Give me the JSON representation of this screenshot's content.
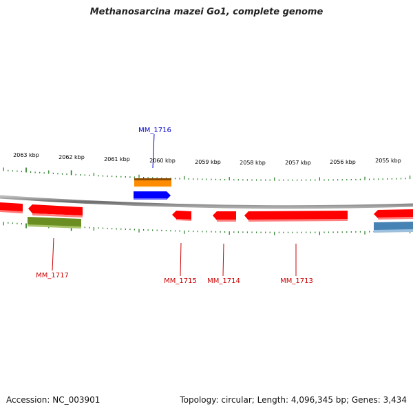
{
  "title": "Methanosarcina mazei Go1, complete genome",
  "footer": {
    "accession": "Accession: NC_003901",
    "topology": "Topology: circular; Length: 4,096,345 bp; Genes: 3,434"
  },
  "ruler": {
    "unit": "kbp",
    "major_ticks": [
      {
        "label": "2063 kbp",
        "kbp": 2063
      },
      {
        "label": "2062 kbp",
        "kbp": 2062
      },
      {
        "label": "2061 kbp",
        "kbp": 2061
      },
      {
        "label": "2060 kbp",
        "kbp": 2060
      },
      {
        "label": "2059 kbp",
        "kbp": 2059
      },
      {
        "label": "2058 kbp",
        "kbp": 2058
      },
      {
        "label": "2057 kbp",
        "kbp": 2057
      },
      {
        "label": "2056 kbp",
        "kbp": 2056
      },
      {
        "label": "2055 kbp",
        "kbp": 2055
      }
    ]
  },
  "gene_labels": [
    {
      "id": "MM_1716",
      "color": "#0000cc"
    },
    {
      "id": "MM_1717",
      "color": "#cc0000"
    },
    {
      "id": "MM_1715",
      "color": "#cc0000"
    },
    {
      "id": "MM_1714",
      "color": "#cc0000"
    },
    {
      "id": "MM_1713",
      "color": "#cc0000"
    }
  ],
  "colors": {
    "backbone": "#888888",
    "ruler_ticks": "#1f7a1f",
    "reverse_cds": "#ff0000",
    "forward_cds": "#0000ff",
    "orange_feature": "#ff8c00",
    "olive_feature": "#6b8e23",
    "steel_feature": "#4682b4"
  }
}
